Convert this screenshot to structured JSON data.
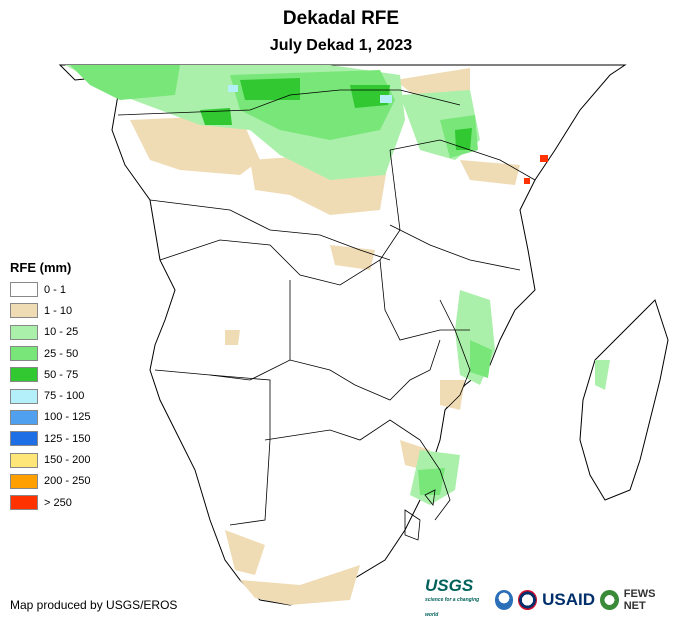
{
  "header": {
    "title": "Dekadal RFE",
    "subtitle": "July Dekad 1, 2023"
  },
  "legend": {
    "title": "RFE (mm)",
    "classes": [
      {
        "label": "0 - 1",
        "color": "#ffffff"
      },
      {
        "label": "1 - 10",
        "color": "#f0dcb4"
      },
      {
        "label": "10 - 25",
        "color": "#aaf0aa"
      },
      {
        "label": "25 - 50",
        "color": "#78e678"
      },
      {
        "label": "50 - 75",
        "color": "#32c832"
      },
      {
        "label": "75 - 100",
        "color": "#b4f0fa"
      },
      {
        "label": "100 - 125",
        "color": "#50a0f0"
      },
      {
        "label": "125 - 150",
        "color": "#1e6ee6"
      },
      {
        "label": "150 - 200",
        "color": "#ffe678"
      },
      {
        "label": "200 - 250",
        "color": "#ffa000"
      },
      {
        "label": "> 250",
        "color": "#ff3200"
      }
    ]
  },
  "footer": {
    "credit": "Map produced by USGS/EROS",
    "logos": {
      "usgs": "USGS",
      "usgs_tagline": "science for a changing world",
      "usaid": "USAID",
      "fews": "FEWS NET"
    }
  }
}
